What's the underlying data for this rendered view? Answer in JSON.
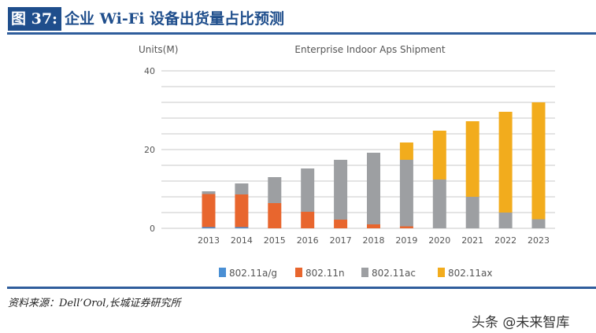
{
  "header": {
    "figure_label": "图 37:",
    "title": "企业 Wi-Fi 设备出货量占比预测"
  },
  "source": "资料来源：Dell’Orol,长城证券研究所",
  "watermark": "头条 @未来智库",
  "chart_data": {
    "type": "bar",
    "stacked": true,
    "title": "Enterprise Indoor Aps Shipment",
    "ylabel": "Units(M)",
    "xlabel": "",
    "ylim": [
      0,
      40
    ],
    "yticks": [
      0,
      20,
      40
    ],
    "grid": true,
    "legend_position": "bottom",
    "categories": [
      "2013",
      "2014",
      "2015",
      "2016",
      "2017",
      "2018",
      "2019",
      "2020",
      "2021",
      "2022",
      "2023"
    ],
    "series": [
      {
        "name": "802.11a/g",
        "color": "#4a8fd4",
        "values": [
          0.3,
          0.3,
          0,
          0,
          0,
          0,
          0,
          0,
          0,
          0,
          0
        ]
      },
      {
        "name": "802.11n",
        "color": "#e8662e",
        "values": [
          8.4,
          8.3,
          6.4,
          4.2,
          2.2,
          1.0,
          0.5,
          0,
          0,
          0,
          0
        ]
      },
      {
        "name": "802.11ac",
        "color": "#9d9fa2",
        "values": [
          0.7,
          2.8,
          6.6,
          11.0,
          15.2,
          18.2,
          16.9,
          12.4,
          8.0,
          4.0,
          2.3
        ]
      },
      {
        "name": "802.11ax",
        "color": "#f2ac1d",
        "values": [
          0,
          0,
          0,
          0,
          0,
          0,
          4.4,
          12.4,
          19.2,
          25.6,
          29.7
        ]
      }
    ]
  }
}
